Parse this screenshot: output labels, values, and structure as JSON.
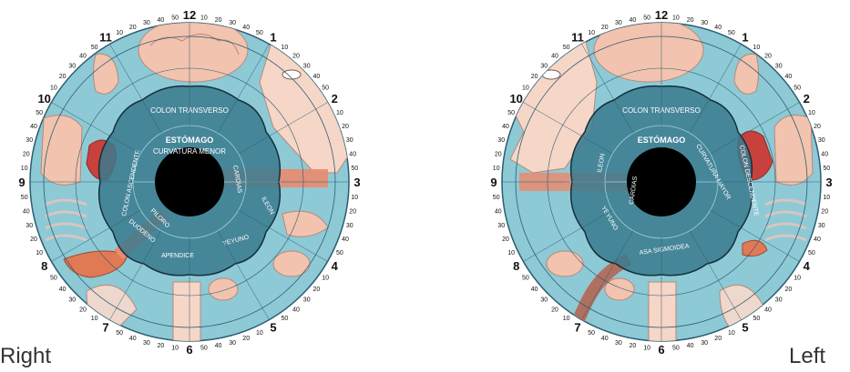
{
  "colors": {
    "ring_bg": "#8ec9d6",
    "ring_line": "#2b5d70",
    "stomach_zone": "#3a7a8e",
    "pupil": "#000000",
    "organ_pink": "#f2c3ae",
    "organ_red": "#c9413c",
    "tick_text": "#111111"
  },
  "tick_labels": [
    "10",
    "20",
    "30",
    "40",
    "50"
  ],
  "irises": [
    {
      "id": "right",
      "side_label": "Right",
      "stomach_title": "ESTÓMAGO",
      "zones": [
        {
          "key": "colon_transverso",
          "text": "COLON TRANSVERSO"
        },
        {
          "key": "curvatura_menor",
          "text": "CURVATURA MENOR"
        },
        {
          "key": "colon_ascendente",
          "text": "COLON ASCENDENTE"
        },
        {
          "key": "cardias",
          "text": "CARDIAS"
        },
        {
          "key": "ileon",
          "text": "ILEON"
        },
        {
          "key": "piloro",
          "text": "PILORO"
        },
        {
          "key": "duodeno",
          "text": "DUODENO"
        },
        {
          "key": "apendice",
          "text": "APENDICE"
        },
        {
          "key": "yeyuno",
          "text": "YEYUNO"
        }
      ]
    },
    {
      "id": "left",
      "side_label": "Left",
      "stomach_title": "ESTÓMAGO",
      "zones": [
        {
          "key": "colon_transverso",
          "text": "COLON TRANSVERSO"
        },
        {
          "key": "curvatura_mayor",
          "text": "CURVATURA MAYOR"
        },
        {
          "key": "colon_descendente",
          "text": "COLON DESCENDENTE"
        },
        {
          "key": "ileon",
          "text": "ILEON"
        },
        {
          "key": "cardias",
          "text": "CARDIAS"
        },
        {
          "key": "yeyuno",
          "text": "YEYUNO"
        },
        {
          "key": "asa_sigmoidea",
          "text": "ASA SIGMOIDEA"
        }
      ]
    }
  ]
}
